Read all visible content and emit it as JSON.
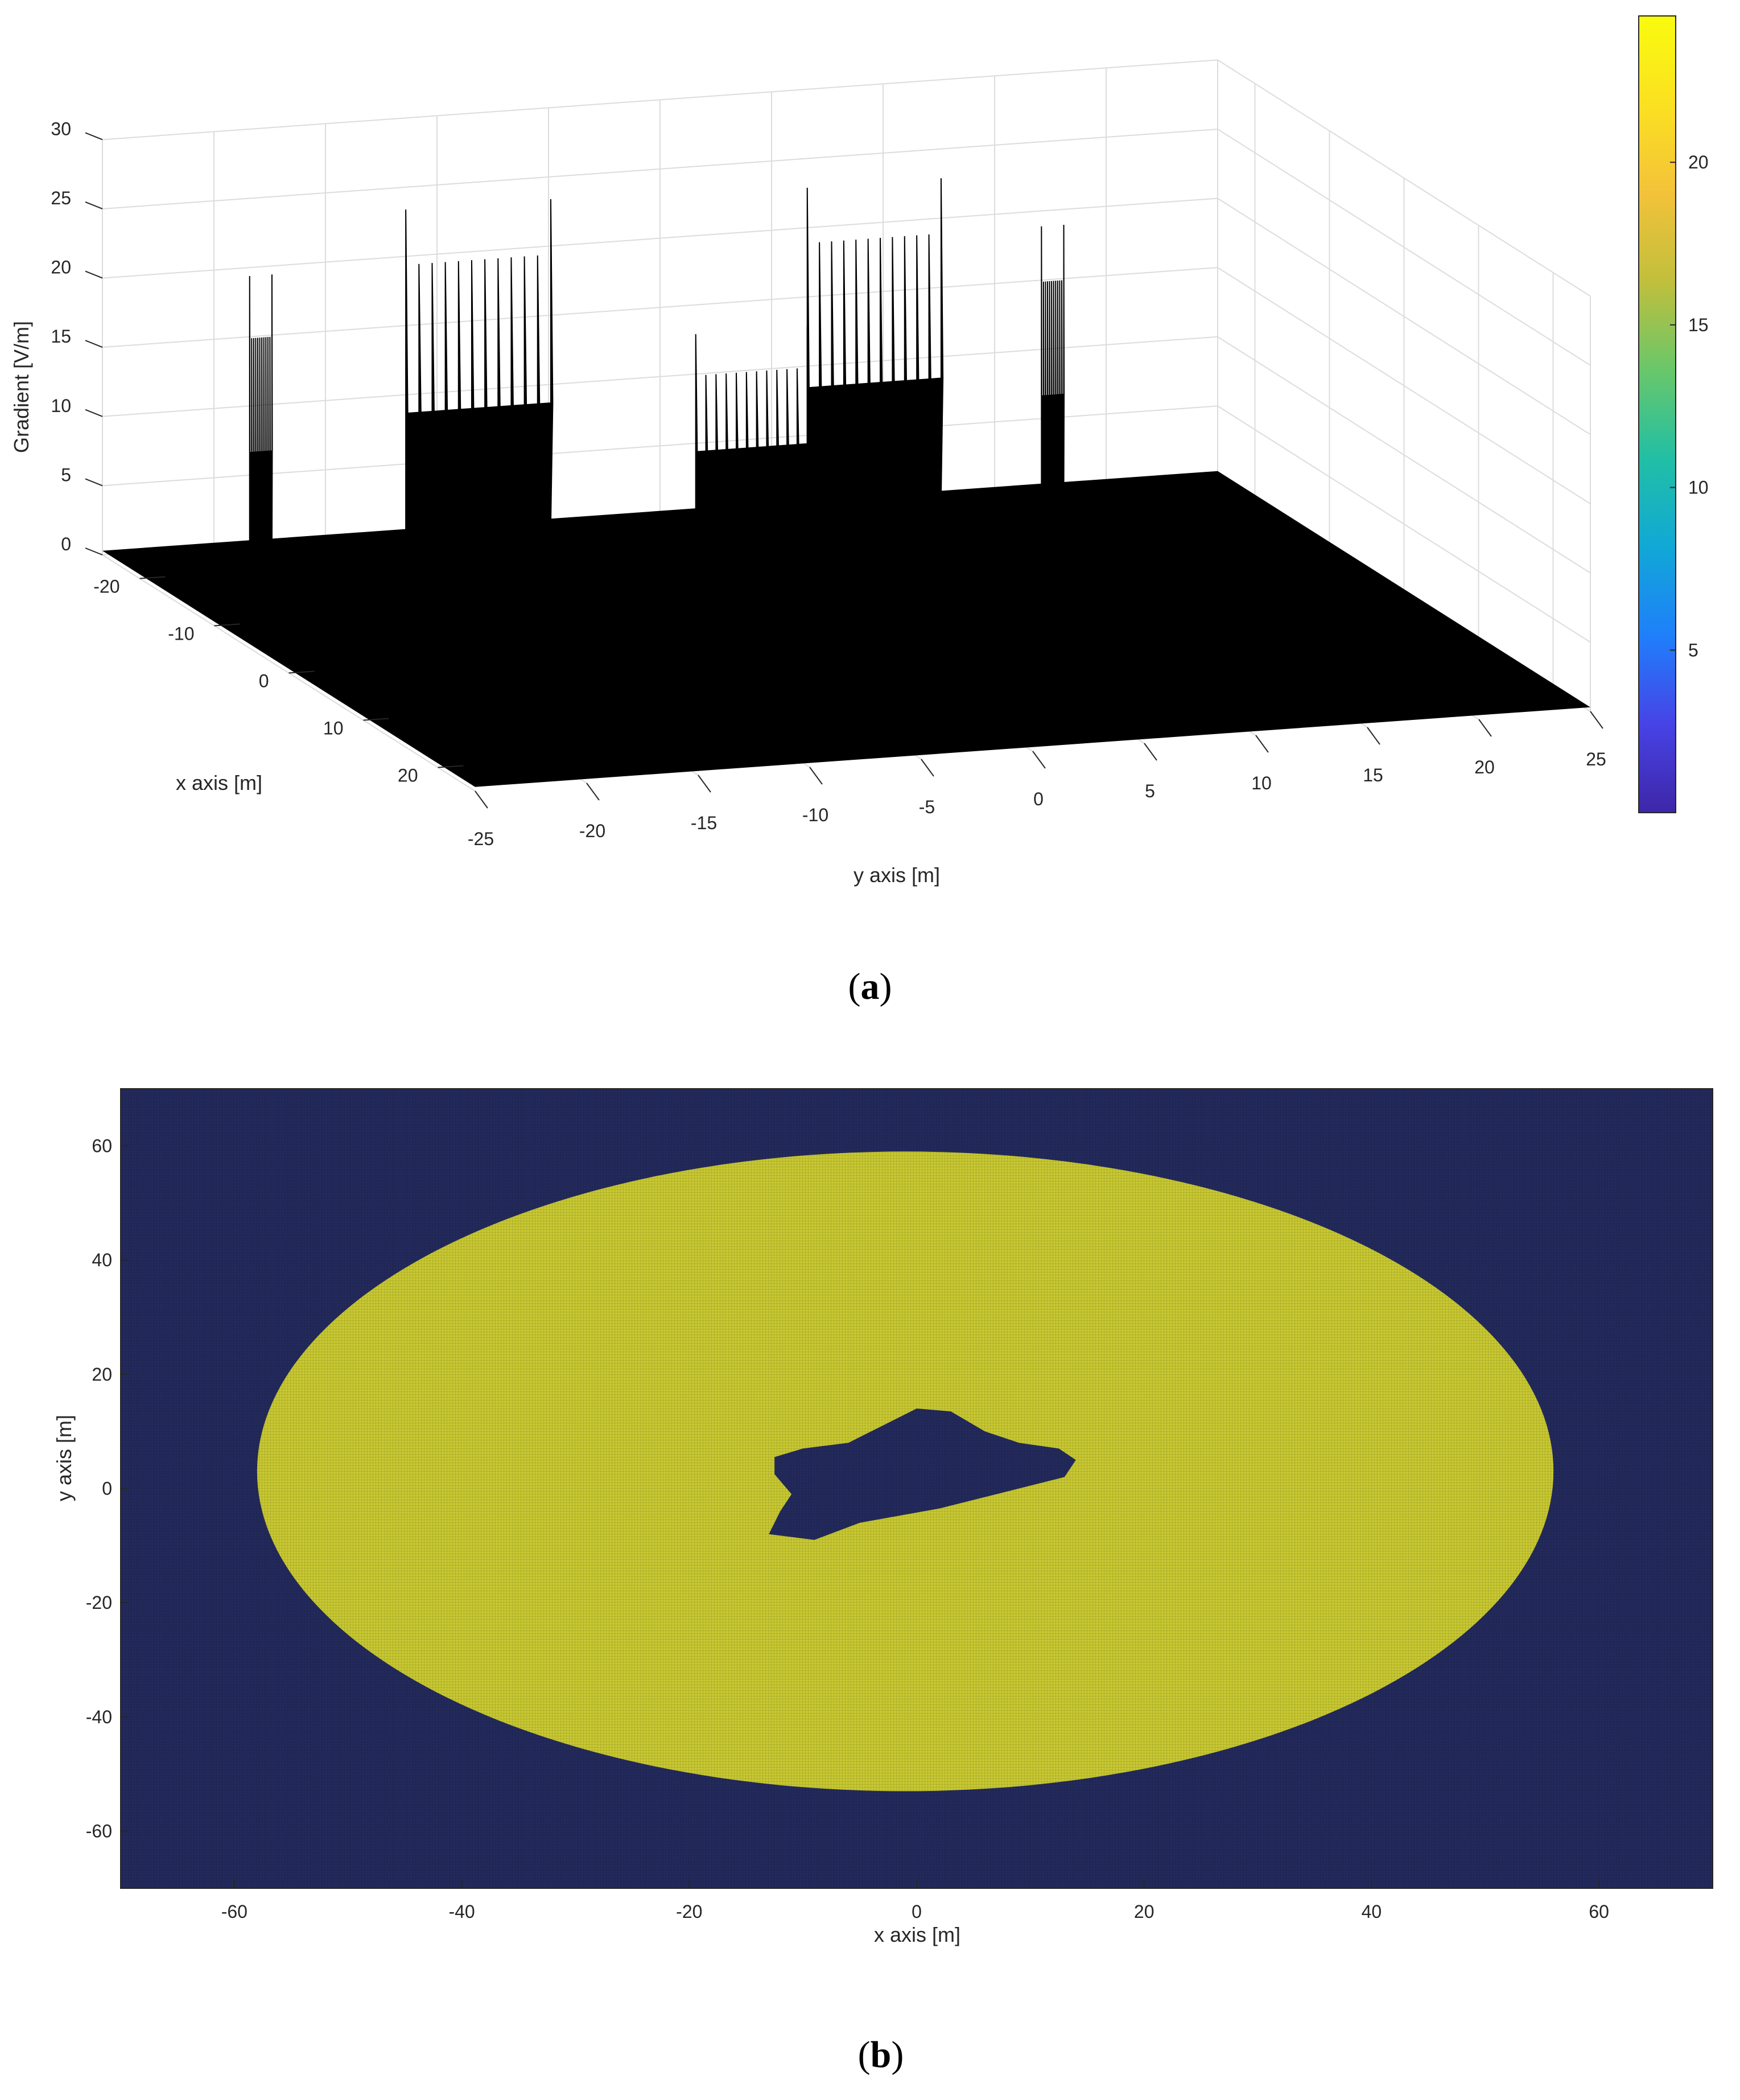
{
  "panels": [
    {
      "caption_open": "(",
      "caption_letter": "a",
      "caption_close": ")"
    },
    {
      "caption_open": "(",
      "caption_letter": "b",
      "caption_close": ")"
    }
  ],
  "chart_data": [
    {
      "type": "surface",
      "title": "",
      "xlabel": "x axis [m]",
      "ylabel": "y axis [m]",
      "zlabel": "Gradient [V/m]",
      "xlim": [
        -25,
        25
      ],
      "ylim": [
        -25,
        25
      ],
      "zlim": [
        0,
        30
      ],
      "x_ticks": [
        -20,
        -10,
        0,
        10,
        20
      ],
      "y_ticks": [
        -25,
        -20,
        -15,
        -10,
        -5,
        0,
        5,
        10,
        15,
        20,
        25
      ],
      "z_ticks": [
        0,
        5,
        10,
        15,
        20,
        25,
        30
      ],
      "grid": true,
      "surface_color": "#000000",
      "peak_groups": [
        {
          "y_from": -18.5,
          "y_to": -17.5,
          "edge_peak": 19.5,
          "inner_level": 15
        },
        {
          "y_from": -11.5,
          "y_to": -5,
          "edge_peak": 23.5,
          "inner_level": 19.5
        },
        {
          "y_from": 1.5,
          "y_to": 6.5,
          "edge_peak": 13,
          "inner_level": 10
        },
        {
          "y_from": 6.5,
          "y_to": 12.5,
          "edge_peak": 23,
          "inner_level": 19
        },
        {
          "y_from": 17,
          "y_to": 18,
          "edge_peak": 19,
          "inner_level": 15
        }
      ],
      "colorbar": {
        "range": [
          0,
          24.5
        ],
        "ticks": [
          5,
          10,
          15,
          20
        ],
        "colormap": [
          "#3e26a8",
          "#4743e6",
          "#1f7ffb",
          "#11a8d6",
          "#21bfa5",
          "#69c76a",
          "#c1bf3c",
          "#f3c23a",
          "#fbe121",
          "#f9fb0e"
        ]
      }
    },
    {
      "type": "heatmap",
      "title": "",
      "xlabel": "x axis [m]",
      "ylabel": "y axis [m]",
      "xlim": [
        -70,
        70
      ],
      "ylim": [
        -70,
        70
      ],
      "x_ticks": [
        -60,
        -40,
        -20,
        0,
        20,
        40,
        60
      ],
      "y_ticks": [
        -60,
        -40,
        -20,
        0,
        20,
        40,
        60
      ],
      "background_color": "#232a5c",
      "region_color": "#c8c832",
      "outer_region": {
        "shape": "ellipse",
        "center": [
          -1,
          3
        ],
        "x_radius": 57,
        "y_radius": 56
      },
      "inner_region_outline": [
        [
          -12.5,
          5.5
        ],
        [
          -10,
          7
        ],
        [
          -6,
          8
        ],
        [
          -3,
          11
        ],
        [
          0,
          14
        ],
        [
          3,
          13.5
        ],
        [
          6,
          10
        ],
        [
          9,
          8
        ],
        [
          12.5,
          7
        ],
        [
          14,
          5
        ],
        [
          13,
          2
        ],
        [
          9,
          0
        ],
        [
          2,
          -3.5
        ],
        [
          -5,
          -6
        ],
        [
          -9,
          -9
        ],
        [
          -13,
          -8
        ],
        [
          -12,
          -4
        ],
        [
          -11,
          -1
        ],
        [
          -12.5,
          2.5
        ]
      ]
    }
  ]
}
